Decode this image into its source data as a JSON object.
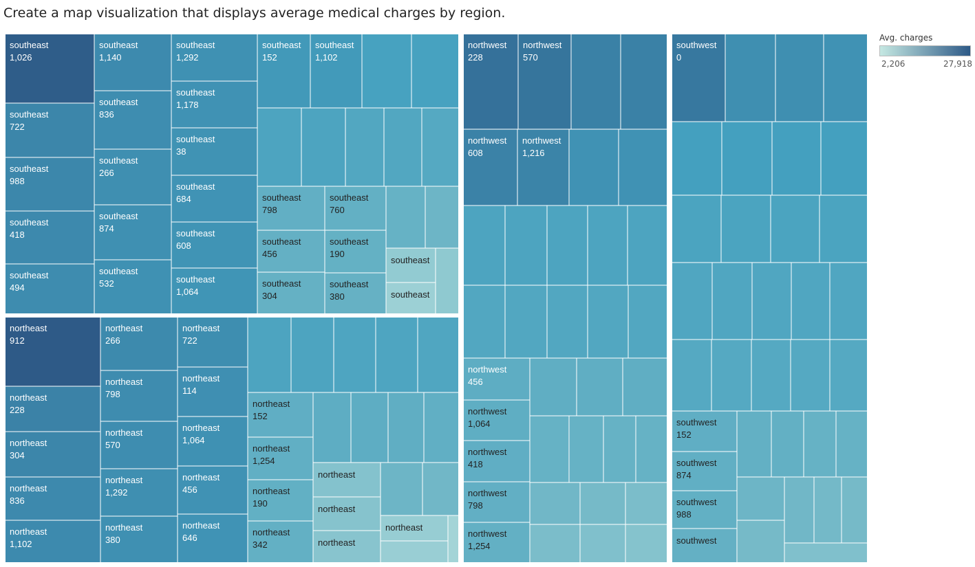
{
  "title": "Create a map visualization that displays average medical charges by region.",
  "legend": {
    "title": "Avg. charges",
    "min_label": "2,206",
    "max_label": "27,918",
    "color_min": "#c5e8e2",
    "color_max": "#2e5a87"
  },
  "chart_data": {
    "type": "treemap",
    "measure": "Avg. charges",
    "color_range": [
      2206,
      27918
    ],
    "regions": [
      {
        "name": "southeast",
        "labeled_cells": [
          {
            "label": "southeast",
            "sub": "1,026",
            "value": 27500
          },
          {
            "label": "southeast",
            "sub": "722",
            "value": 21500
          },
          {
            "label": "southeast",
            "sub": "988",
            "value": 21300
          },
          {
            "label": "southeast",
            "sub": "418",
            "value": 21000
          },
          {
            "label": "southeast",
            "sub": "494",
            "value": 20500
          },
          {
            "label": "southeast",
            "sub": "1,140",
            "value": 20800
          },
          {
            "label": "southeast",
            "sub": "836",
            "value": 20400
          },
          {
            "label": "southeast",
            "sub": "266",
            "value": 20200
          },
          {
            "label": "southeast",
            "sub": "874",
            "value": 20000
          },
          {
            "label": "southeast",
            "sub": "532",
            "value": 19800
          },
          {
            "label": "southeast",
            "sub": "1,292",
            "value": 19800
          },
          {
            "label": "southeast",
            "sub": "1,178",
            "value": 19700
          },
          {
            "label": "southeast",
            "sub": "38",
            "value": 19600
          },
          {
            "label": "southeast",
            "sub": "684",
            "value": 19500
          },
          {
            "label": "southeast",
            "sub": "608",
            "value": 19400
          },
          {
            "label": "southeast",
            "sub": "1,064",
            "value": 19300
          },
          {
            "label": "southeast",
            "sub": "152",
            "value": 18700
          },
          {
            "label": "southeast",
            "sub": "1,102",
            "value": 18500
          },
          {
            "label": "southeast",
            "sub": "798",
            "value": 13200
          },
          {
            "label": "southeast",
            "sub": "760",
            "value": 13000
          },
          {
            "label": "southeast",
            "sub": "456",
            "value": 12900
          },
          {
            "label": "southeast",
            "sub": "190",
            "value": 12800
          },
          {
            "label": "southeast",
            "sub": "304",
            "value": 12700
          },
          {
            "label": "southeast",
            "sub": "380",
            "value": 12600
          },
          {
            "label": "southeast",
            "sub": "",
            "value": 7500
          },
          {
            "label": "southeast",
            "sub": "",
            "value": 6500
          }
        ]
      },
      {
        "name": "northeast",
        "labeled_cells": [
          {
            "label": "northeast",
            "sub": "912",
            "value": 27918
          },
          {
            "label": "northeast",
            "sub": "228",
            "value": 22000
          },
          {
            "label": "northeast",
            "sub": "304",
            "value": 21500
          },
          {
            "label": "northeast",
            "sub": "836",
            "value": 21000
          },
          {
            "label": "northeast",
            "sub": "1,102",
            "value": 20800
          },
          {
            "label": "northeast",
            "sub": "266",
            "value": 20900
          },
          {
            "label": "northeast",
            "sub": "798",
            "value": 20600
          },
          {
            "label": "northeast",
            "sub": "570",
            "value": 20400
          },
          {
            "label": "northeast",
            "sub": "1,292",
            "value": 20200
          },
          {
            "label": "northeast",
            "sub": "380",
            "value": 20000
          },
          {
            "label": "northeast",
            "sub": "722",
            "value": 20300
          },
          {
            "label": "northeast",
            "sub": "114",
            "value": 20100
          },
          {
            "label": "northeast",
            "sub": "1,064",
            "value": 19900
          },
          {
            "label": "northeast",
            "sub": "456",
            "value": 19700
          },
          {
            "label": "northeast",
            "sub": "646",
            "value": 19500
          },
          {
            "label": "northeast",
            "sub": "152",
            "value": 13500
          },
          {
            "label": "northeast",
            "sub": "1,254",
            "value": 13300
          },
          {
            "label": "northeast",
            "sub": "190",
            "value": 13100
          },
          {
            "label": "northeast",
            "sub": "342",
            "value": 13000
          },
          {
            "label": "northeast",
            "sub": "",
            "value": 9000
          },
          {
            "label": "northeast",
            "sub": "",
            "value": 8800
          },
          {
            "label": "northeast",
            "sub": "",
            "value": 8600
          },
          {
            "label": "northeast",
            "sub": "",
            "value": 7000
          }
        ]
      },
      {
        "name": "northwest",
        "labeled_cells": [
          {
            "label": "northwest",
            "sub": "228",
            "value": 24500
          },
          {
            "label": "northwest",
            "sub": "570",
            "value": 24000
          },
          {
            "label": "northwest",
            "sub": "608",
            "value": 22000
          },
          {
            "label": "northwest",
            "sub": "1,216",
            "value": 21800
          },
          {
            "label": "northwest",
            "sub": "456",
            "value": 13800
          },
          {
            "label": "northwest",
            "sub": "1,064",
            "value": 13600
          },
          {
            "label": "northwest",
            "sub": "418",
            "value": 13400
          },
          {
            "label": "northwest",
            "sub": "798",
            "value": 13200
          },
          {
            "label": "northwest",
            "sub": "1,254",
            "value": 13000
          }
        ]
      },
      {
        "name": "southwest",
        "labeled_cells": [
          {
            "label": "southwest",
            "sub": "0",
            "value": 23500
          },
          {
            "label": "southwest",
            "sub": "152",
            "value": 13500
          },
          {
            "label": "southwest",
            "sub": "874",
            "value": 13300
          },
          {
            "label": "southwest",
            "sub": "988",
            "value": 13100
          },
          {
            "label": "southwest",
            "sub": "",
            "value": 12900
          }
        ]
      }
    ]
  }
}
